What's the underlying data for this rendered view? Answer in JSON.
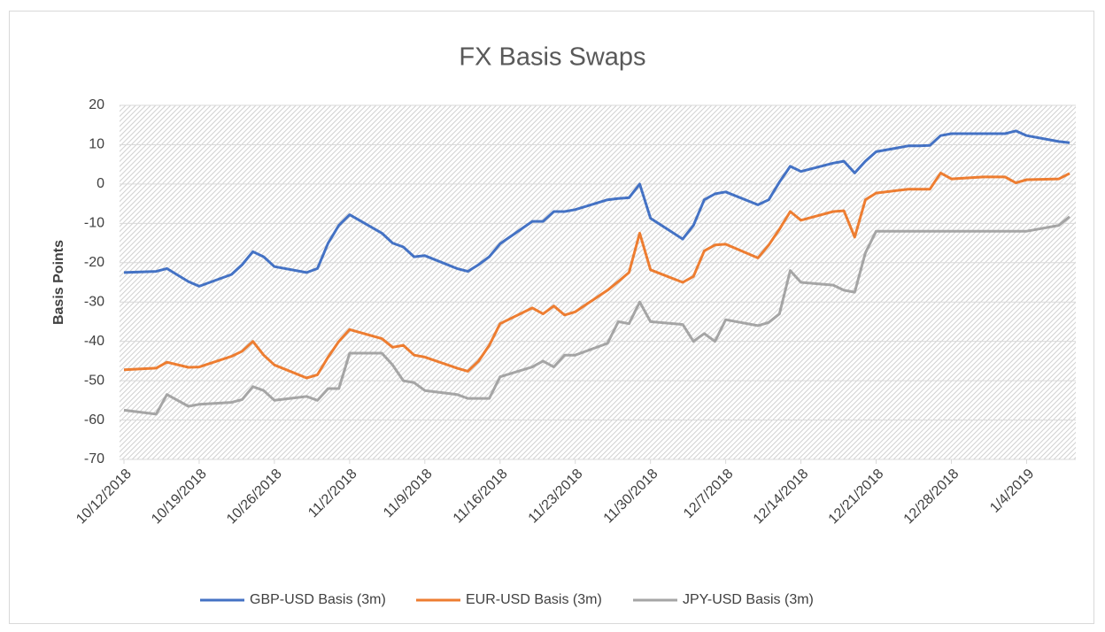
{
  "chart_data": {
    "type": "line",
    "title": "FX Basis Swaps",
    "y_label": "Basis Points",
    "x": [
      "10/12/2018",
      "10/15/2018",
      "10/16/2018",
      "10/18/2018",
      "10/19/2018",
      "10/22/2018",
      "10/23/2018",
      "10/24/2018",
      "10/25/2018",
      "10/26/2018",
      "10/29/2018",
      "10/30/2018",
      "10/31/2018",
      "11/1/2018",
      "11/2/2018",
      "11/5/2018",
      "11/6/2018",
      "11/7/2018",
      "11/8/2018",
      "11/9/2018",
      "11/12/2018",
      "11/13/2018",
      "11/14/2018",
      "11/15/2018",
      "11/16/2018",
      "11/19/2018",
      "11/20/2018",
      "11/21/2018",
      "11/22/2018",
      "11/23/2018",
      "11/26/2018",
      "11/27/2018",
      "11/28/2018",
      "11/29/2018",
      "11/30/2018",
      "12/3/2018",
      "12/4/2018",
      "12/5/2018",
      "12/6/2018",
      "12/7/2018",
      "12/10/2018",
      "12/11/2018",
      "12/12/2018",
      "12/13/2018",
      "12/14/2018",
      "12/17/2018",
      "12/18/2018",
      "12/19/2018",
      "12/20/2018",
      "12/21/2018",
      "12/24/2018",
      "12/25/2018",
      "12/26/2018",
      "12/27/2018",
      "12/28/2018",
      "12/31/2018",
      "1/1/2019",
      "1/2/2019",
      "1/3/2019",
      "1/4/2019",
      "1/7/2019",
      "1/8/2019"
    ],
    "series": [
      {
        "name": "GBP-USD Basis (3m)",
        "color": "#4472c4",
        "values": [
          -22.5,
          -22.2,
          -21.5,
          -24.8,
          -26,
          -23,
          -20.5,
          -17.2,
          -18.5,
          -21,
          -22.5,
          -21.5,
          -15,
          -10.5,
          -7.8,
          -12.5,
          -15,
          -16,
          -18.5,
          -18.2,
          -21.5,
          -22.2,
          -20.5,
          -18.5,
          -15.2,
          -9.5,
          -9.5,
          -7,
          -7,
          -6.5,
          -4,
          -3.7,
          -3.5,
          0,
          -8.7,
          -14,
          -10.5,
          -4,
          -2.5,
          -2,
          -5.3,
          -4,
          0.5,
          4.5,
          3.2,
          5.3,
          5.8,
          2.8,
          5.8,
          8.2,
          9.7,
          9.7,
          9.8,
          12.3,
          12.8,
          12.8,
          12.8,
          12.8,
          13.5,
          12.3,
          10.8,
          10.5
        ]
      },
      {
        "name": "EUR-USD Basis (3m)",
        "color": "#ed7d31",
        "values": [
          -47.2,
          -46.8,
          -45.3,
          -46.6,
          -46.5,
          -43.8,
          -42.5,
          -40,
          -43.5,
          -46,
          -49.3,
          -48.5,
          -44,
          -40,
          -37,
          -39.3,
          -41.5,
          -41,
          -43.5,
          -44,
          -46.8,
          -47.6,
          -45,
          -41,
          -35.5,
          -31.5,
          -33,
          -31,
          -33.3,
          -32.5,
          -27,
          -24.8,
          -22.5,
          -12.5,
          -21.8,
          -25,
          -23.5,
          -17,
          -15.5,
          -15.3,
          -18.8,
          -15.5,
          -11.5,
          -7,
          -9.2,
          -7,
          -6.8,
          -13.5,
          -4,
          -2.3,
          -1.3,
          -1.3,
          -1.3,
          2.8,
          1.3,
          1.8,
          1.8,
          1.8,
          0.3,
          1.1,
          1.3,
          2.7
        ]
      },
      {
        "name": "JPY-USD Basis (3m)",
        "color": "#a5a5a5",
        "values": [
          -57.5,
          -58.5,
          -53.5,
          -56.5,
          -56,
          -55.5,
          -54.8,
          -51.5,
          -52.5,
          -55,
          -54,
          -55,
          -52,
          -52,
          -43,
          -43,
          -46,
          -50,
          -50.5,
          -52.5,
          -53.5,
          -54.5,
          -54.5,
          -54.5,
          -49,
          -46.5,
          -45,
          -46.5,
          -43.5,
          -43.5,
          -40.5,
          -35,
          -35.5,
          -30,
          -35,
          -35.7,
          -40,
          -38,
          -40,
          -34.5,
          -36,
          -35.2,
          -33,
          -22,
          -25,
          -25.7,
          -27,
          -27.5,
          -17.5,
          -12,
          -12,
          -12,
          -12,
          -12,
          -12,
          -12,
          -12,
          -12,
          -12,
          -12,
          -10.5,
          -8.3
        ]
      }
    ],
    "xlim": [
      "10/12/2018",
      "1/8/2019"
    ],
    "xticks": [
      "10/12/2018",
      "10/19/2018",
      "10/26/2018",
      "11/2/2018",
      "11/9/2018",
      "11/16/2018",
      "11/23/2018",
      "11/30/2018",
      "12/7/2018",
      "12/14/2018",
      "12/21/2018",
      "12/28/2018",
      "1/4/2019"
    ],
    "ylim": [
      -70,
      20
    ],
    "yticks": [
      -70,
      -60,
      -50,
      -40,
      -30,
      -20,
      -10,
      0,
      10,
      20
    ],
    "grid": true,
    "legend": "bottom"
  }
}
